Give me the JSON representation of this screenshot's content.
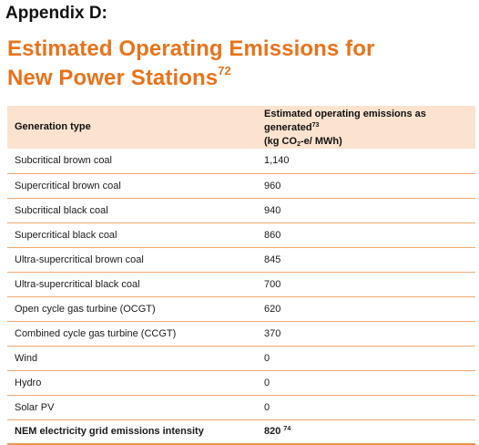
{
  "appendix_label": "Appendix D:",
  "title": {
    "line1": "Estimated Operating Emissions for",
    "line2": "New Power Stations",
    "footnote": "72"
  },
  "table": {
    "header": {
      "col1": "Generation type",
      "col2_line1": "Estimated operating emissions as generated",
      "col2_footnote": "73",
      "col2_line2_prefix": "(kg CO",
      "col2_line2_sub": "2",
      "col2_line2_suffix": "-e/ MWh)"
    },
    "rows": [
      {
        "type": "Subcritical brown coal",
        "value": "1,140"
      },
      {
        "type": "Supercritical brown coal",
        "value": "960"
      },
      {
        "type": "Subcritical black coal",
        "value": "940"
      },
      {
        "type": "Supercritical black coal",
        "value": "860"
      },
      {
        "type": "Ultra-supercritical brown coal",
        "value": "845"
      },
      {
        "type": "Ultra-supercritical black coal",
        "value": "700"
      },
      {
        "type": "Open cycle gas turbine (OCGT)",
        "value": "620"
      },
      {
        "type": "Combined cycle gas turbine (CCGT)",
        "value": "370"
      },
      {
        "type": "Wind",
        "value": "0"
      },
      {
        "type": "Hydro",
        "value": "0"
      },
      {
        "type": "Solar PV",
        "value": "0"
      }
    ],
    "total": {
      "type": "NEM electricity grid emissions intensity",
      "value": "820",
      "footnote": "74"
    }
  },
  "colors": {
    "accent": "#e8731b",
    "header_bg": "#fbe3cf",
    "rule": "#f2a66e"
  }
}
